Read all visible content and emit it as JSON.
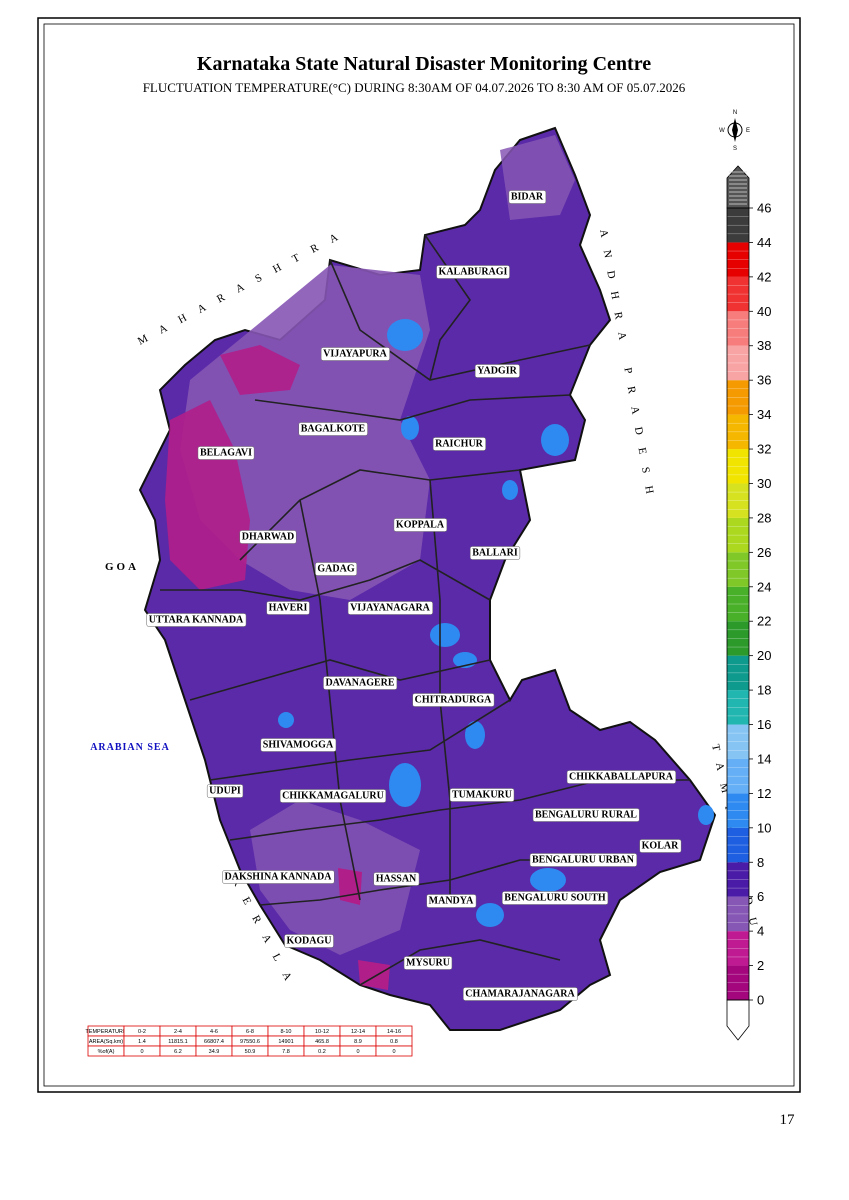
{
  "header": {
    "title": "Karnataka State Natural Disaster Monitoring Centre",
    "subtitle": "FLUCTUATION TEMPERATURE(°C) DURING 8:30AM OF 04.07.2026 TO 8:30 AM OF 05.07.2026"
  },
  "compass": {
    "north": "N",
    "east": "E",
    "west": "W",
    "south": "S"
  },
  "neighbors": {
    "maharashtra": "MAHARASHTRA",
    "goa": "GOA",
    "arabian_sea": "ARABIAN SEA",
    "kerala": "KERALA",
    "andhra_pradesh": "ANDHRA PRADESH",
    "tamil_nadu": "TAMIL NADU"
  },
  "districts": [
    "BIDAR",
    "KALABURAGI",
    "VIJAYAPURA",
    "YADGIR",
    "BAGALKOTE",
    "RAICHUR",
    "BELAGAVI",
    "KOPPALA",
    "DHARWAD",
    "BALLARI",
    "GADAG",
    "HAVERI",
    "VIJAYANAGARA",
    "UTTARA KANNADA",
    "DAVANAGERE",
    "CHITRADURGA",
    "SHIVAMOGGA",
    "CHIKKABALLAPURA",
    "UDUPI",
    "CHIKKAMAGALURU",
    "TUMAKURU",
    "BENGALURU RURAL",
    "KOLAR",
    "BENGALURU URBAN",
    "DAKSHINA KANNADA",
    "HASSAN",
    "MANDYA",
    "BENGALURU SOUTH",
    "KODAGU",
    "MYSURU",
    "CHAMARAJANAGARA"
  ],
  "legend": {
    "ticks": [
      0,
      2,
      4,
      6,
      8,
      10,
      12,
      14,
      16,
      18,
      20,
      22,
      24,
      26,
      28,
      30,
      32,
      34,
      36,
      38,
      40,
      42,
      44,
      46
    ],
    "colors": [
      "#a3067d",
      "#c01a93",
      "#8657b4",
      "#4a1ba6",
      "#1e5fe2",
      "#2e8af0",
      "#64aff5",
      "#86c4f4",
      "#22b6b0",
      "#0f9a8e",
      "#2b9a2b",
      "#49b02a",
      "#7fc828",
      "#acd920",
      "#d6e21f",
      "#f1e400",
      "#f6b700",
      "#f59a00",
      "#f9a4a4",
      "#f77d7d",
      "#f03232",
      "#e60000",
      "#3c3c3c"
    ]
  },
  "table": {
    "rows": [
      [
        "TEMPERATURE",
        "0-2",
        "2-4",
        "4-6",
        "6-8",
        "8-10",
        "10-12",
        "12-14",
        "14-16"
      ],
      [
        "AREA(Sq.km)",
        "1.4",
        "11815.1",
        "66807.4",
        "97550.6",
        "14901",
        "465.8",
        "8.9",
        "0.8"
      ],
      [
        "%of(A)",
        "0",
        "6.2",
        "34.9",
        "50.9",
        "7.8",
        "0.2",
        "0",
        "0"
      ]
    ]
  },
  "page_number": "17"
}
